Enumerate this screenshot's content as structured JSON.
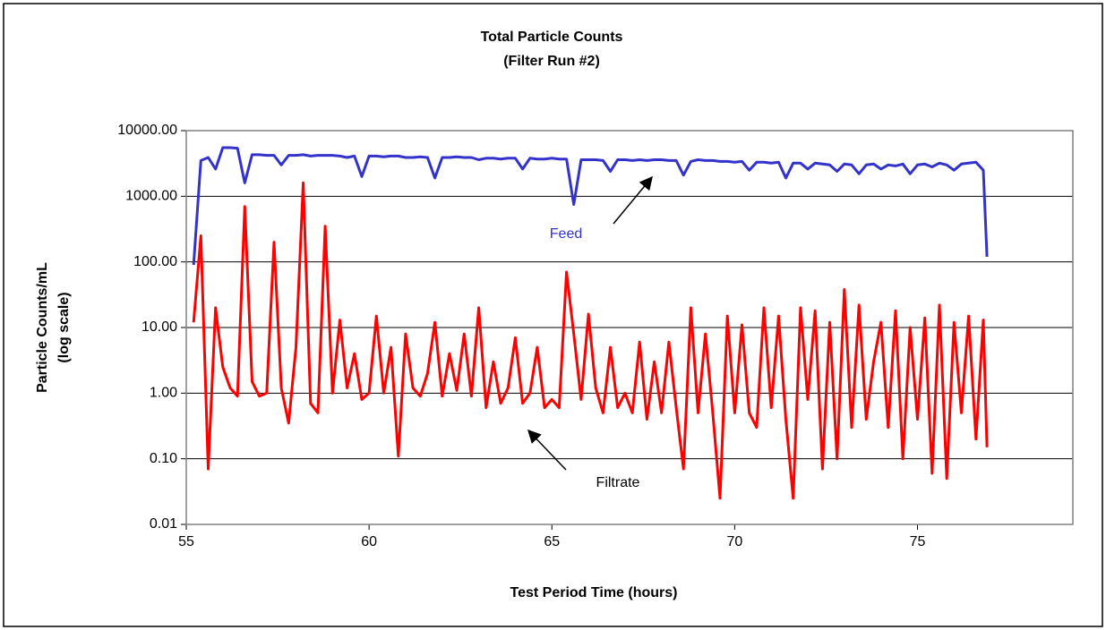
{
  "chart_data": {
    "type": "line",
    "title": "Total Particle Counts",
    "subtitle": "(Filter Run #2)",
    "xlabel": "Test Period Time (hours)",
    "ylabel": [
      "Particle Counts/mL",
      "(log scale)"
    ],
    "log_y": true,
    "grid": true,
    "xlim": [
      55,
      79.25
    ],
    "xticks": [
      55,
      60,
      65,
      70,
      75
    ],
    "ylim": [
      0.01,
      10000
    ],
    "yticks": [
      {
        "value": 0.01,
        "label": "0.01"
      },
      {
        "value": 0.1,
        "label": "0.10"
      },
      {
        "value": 1,
        "label": "1.00"
      },
      {
        "value": 10,
        "label": "10.00"
      },
      {
        "value": 100,
        "label": "100.00"
      },
      {
        "value": 1000,
        "label": "1000.00"
      },
      {
        "value": 10000,
        "label": "10000.00"
      }
    ],
    "x": [
      55.2,
      55.4,
      55.6,
      55.8,
      56.0,
      56.2,
      56.4,
      56.6,
      56.8,
      57.0,
      57.2,
      57.4,
      57.6,
      57.8,
      58.0,
      58.2,
      58.4,
      58.6,
      58.8,
      59.0,
      59.2,
      59.4,
      59.6,
      59.8,
      60.0,
      60.2,
      60.4,
      60.6,
      60.8,
      61.0,
      61.2,
      61.4,
      61.6,
      61.8,
      62.0,
      62.2,
      62.4,
      62.6,
      62.8,
      63.0,
      63.2,
      63.4,
      63.6,
      63.8,
      64.0,
      64.2,
      64.4,
      64.6,
      64.8,
      65.0,
      65.2,
      65.4,
      65.6,
      65.8,
      66.0,
      66.2,
      66.4,
      66.6,
      66.8,
      67.0,
      67.2,
      67.4,
      67.6,
      67.8,
      68.0,
      68.2,
      68.4,
      68.6,
      68.8,
      69.0,
      69.2,
      69.4,
      69.6,
      69.8,
      70.0,
      70.2,
      70.4,
      70.6,
      70.8,
      71.0,
      71.2,
      71.4,
      71.6,
      71.8,
      72.0,
      72.2,
      72.4,
      72.6,
      72.8,
      73.0,
      73.2,
      73.4,
      73.6,
      73.8,
      74.0,
      74.2,
      74.4,
      74.6,
      74.8,
      75.0,
      75.2,
      75.4,
      75.6,
      75.8,
      76.0,
      76.2,
      76.4,
      76.6,
      76.8,
      76.9
    ],
    "series": [
      {
        "name": "Feed",
        "color": "#3333cc",
        "values": [
          90,
          3500,
          3900,
          2600,
          5500,
          5500,
          5400,
          1600,
          4300,
          4300,
          4200,
          4200,
          3000,
          4200,
          4200,
          4300,
          4100,
          4200,
          4200,
          4200,
          4100,
          3900,
          4100,
          2000,
          4100,
          4100,
          4000,
          4100,
          4100,
          3900,
          3900,
          4000,
          3900,
          1900,
          3900,
          3900,
          4000,
          3900,
          3900,
          3600,
          3800,
          3800,
          3700,
          3800,
          3800,
          2600,
          3800,
          3700,
          3700,
          3800,
          3700,
          3700,
          750,
          3600,
          3600,
          3600,
          3500,
          2400,
          3600,
          3600,
          3500,
          3600,
          3500,
          3600,
          3600,
          3500,
          3500,
          2100,
          3400,
          3600,
          3500,
          3500,
          3400,
          3400,
          3300,
          3400,
          2500,
          3300,
          3300,
          3200,
          3300,
          1900,
          3200,
          3200,
          2600,
          3200,
          3100,
          3000,
          2400,
          3100,
          3000,
          2200,
          3000,
          3100,
          2600,
          3000,
          2900,
          3100,
          2200,
          3000,
          3100,
          2800,
          3200,
          3000,
          2500,
          3100,
          3200,
          3300,
          2500,
          120
        ]
      },
      {
        "name": "Filtrate",
        "color": "#ff0000",
        "values": [
          12,
          250,
          0.07,
          20,
          2.5,
          1.2,
          0.9,
          700,
          1.5,
          0.9,
          1.0,
          200,
          1.2,
          0.35,
          5,
          1600,
          0.7,
          0.5,
          350,
          1.0,
          13,
          1.2,
          4,
          0.8,
          1.0,
          15,
          1.0,
          5,
          0.11,
          8,
          1.2,
          0.9,
          2,
          12,
          0.9,
          4,
          1.1,
          8,
          0.9,
          20,
          0.6,
          3,
          0.7,
          1.2,
          7,
          0.7,
          1.0,
          5,
          0.6,
          0.8,
          0.6,
          70,
          8,
          0.8,
          16,
          1.2,
          0.5,
          5,
          0.6,
          1.0,
          0.5,
          6,
          0.4,
          3,
          0.5,
          6,
          0.6,
          0.07,
          20,
          0.5,
          8,
          0.5,
          0.025,
          15,
          0.5,
          11,
          0.5,
          0.3,
          20,
          0.6,
          15,
          0.4,
          0.025,
          20,
          0.8,
          18,
          0.07,
          12,
          0.1,
          38,
          0.3,
          22,
          0.4,
          3,
          12,
          0.3,
          18,
          0.1,
          10,
          0.4,
          14,
          0.06,
          22,
          0.05,
          12,
          0.5,
          15,
          0.2,
          13,
          0.15
        ]
      }
    ],
    "annotations": [
      "Feed",
      "Filtrate"
    ]
  }
}
